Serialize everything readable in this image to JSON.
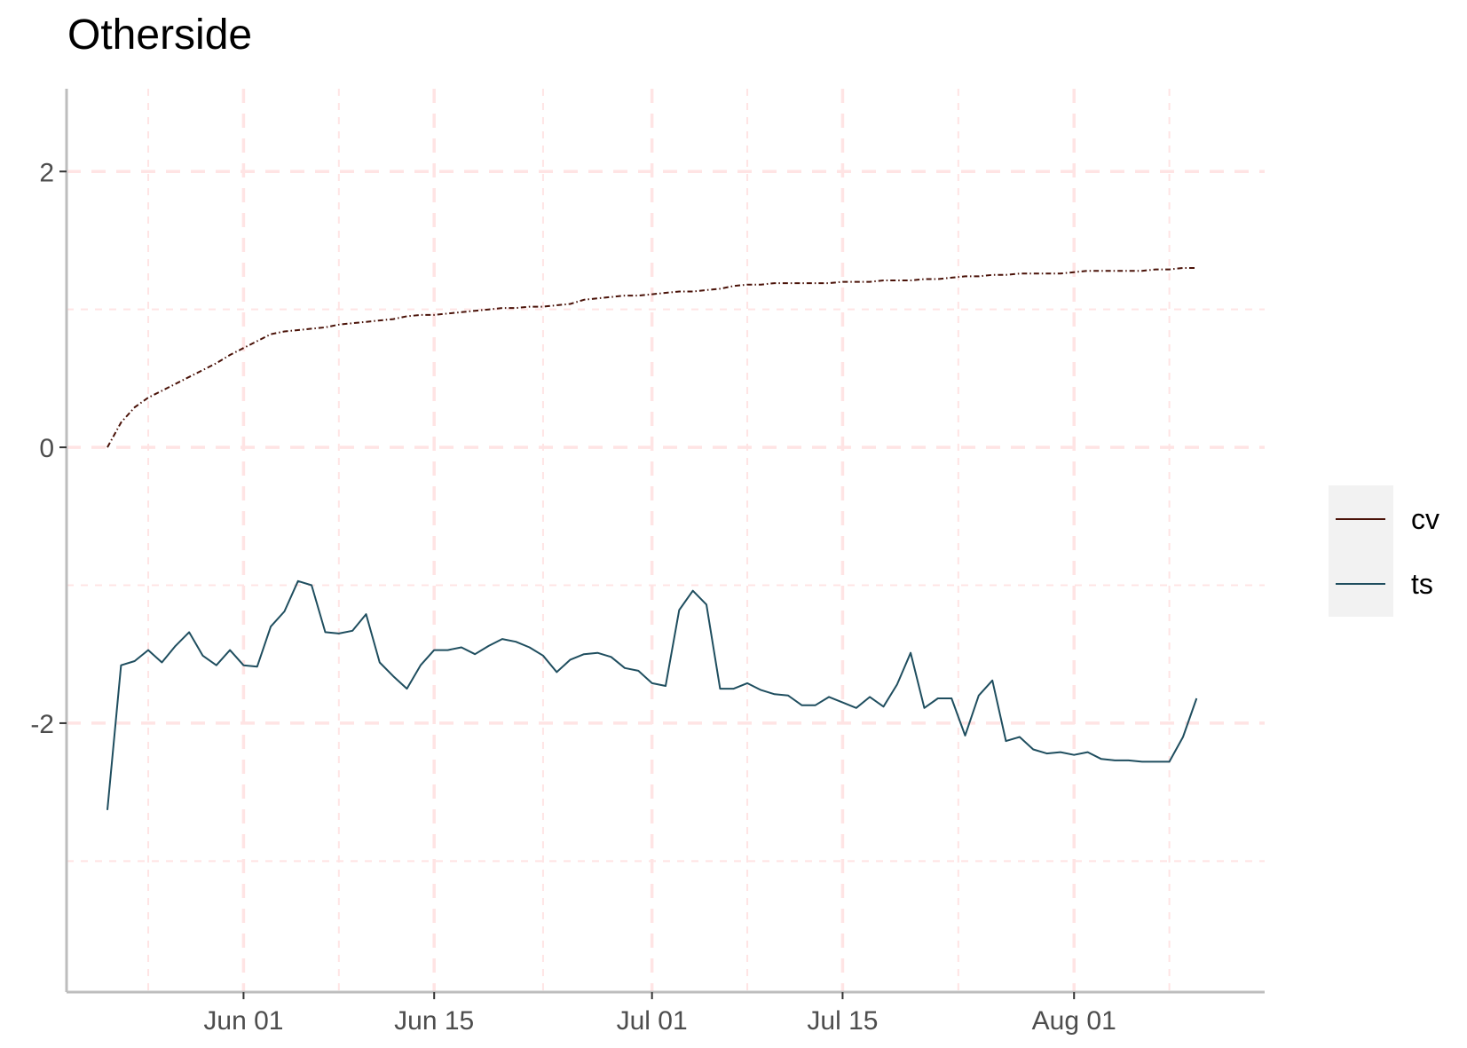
{
  "chart_data": {
    "type": "line",
    "title": "Otherside",
    "xlabel": "",
    "ylabel": "",
    "x_start": "2023-05-22",
    "x_end": "2023-08-11",
    "xlim": [
      "2023-05-19",
      "2023-08-15"
    ],
    "ylim": [
      -3.95,
      2.6
    ],
    "y_ticks": [
      2,
      0,
      -2
    ],
    "y_tick_labels": [
      "2",
      "0",
      "-2"
    ],
    "x_ticks": [
      "2023-06-01",
      "2023-06-15",
      "2023-07-01",
      "2023-07-15",
      "2023-08-01"
    ],
    "x_tick_labels": [
      "Jun 01",
      "Jun 15",
      "Jul 01",
      "Jul 15",
      "Aug 01"
    ],
    "grid": true,
    "legend_position": "right",
    "series": [
      {
        "name": "cv",
        "color": "#4a1208",
        "line_style": "dotdash",
        "values": [
          0.0,
          0.18,
          0.29,
          0.36,
          0.41,
          0.46,
          0.51,
          0.56,
          0.61,
          0.67,
          0.72,
          0.77,
          0.82,
          0.84,
          0.85,
          0.86,
          0.87,
          0.89,
          0.9,
          0.91,
          0.92,
          0.93,
          0.95,
          0.96,
          0.96,
          0.97,
          0.98,
          0.99,
          1.0,
          1.01,
          1.01,
          1.02,
          1.02,
          1.03,
          1.04,
          1.07,
          1.08,
          1.09,
          1.1,
          1.1,
          1.11,
          1.12,
          1.13,
          1.13,
          1.14,
          1.15,
          1.17,
          1.18,
          1.18,
          1.19,
          1.19,
          1.19,
          1.19,
          1.19,
          1.2,
          1.2,
          1.2,
          1.21,
          1.21,
          1.21,
          1.22,
          1.22,
          1.23,
          1.24,
          1.24,
          1.25,
          1.25,
          1.26,
          1.26,
          1.26,
          1.26,
          1.27,
          1.28,
          1.28,
          1.28,
          1.28,
          1.28,
          1.29,
          1.29,
          1.3,
          1.3
        ]
      },
      {
        "name": "ts",
        "color": "#1f4e5f",
        "line_style": "solid",
        "values": [
          -2.63,
          -1.58,
          -1.55,
          -1.47,
          -1.56,
          -1.44,
          -1.34,
          -1.51,
          -1.58,
          -1.47,
          -1.58,
          -1.59,
          -1.3,
          -1.19,
          -0.97,
          -1.0,
          -1.34,
          -1.35,
          -1.33,
          -1.21,
          -1.56,
          -1.66,
          -1.75,
          -1.58,
          -1.47,
          -1.47,
          -1.45,
          -1.5,
          -1.44,
          -1.39,
          -1.41,
          -1.45,
          -1.51,
          -1.63,
          -1.54,
          -1.5,
          -1.49,
          -1.52,
          -1.6,
          -1.62,
          -1.71,
          -1.73,
          -1.18,
          -1.04,
          -1.14,
          -1.75,
          -1.75,
          -1.71,
          -1.76,
          -1.79,
          -1.8,
          -1.87,
          -1.87,
          -1.81,
          -1.85,
          -1.89,
          -1.81,
          -1.88,
          -1.72,
          -1.49,
          -1.89,
          -1.82,
          -1.82,
          -2.09,
          -1.8,
          -1.69,
          -2.13,
          -2.1,
          -2.19,
          -2.22,
          -2.21,
          -2.23,
          -2.21,
          -2.26,
          -2.27,
          -2.27,
          -2.28,
          -2.28,
          -2.28,
          -2.1,
          -1.82
        ]
      }
    ]
  }
}
